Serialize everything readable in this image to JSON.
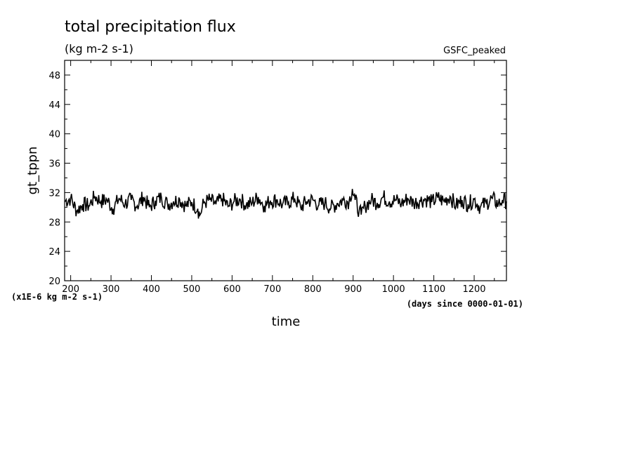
{
  "chart_data": {
    "type": "line",
    "title": "total precipitation flux",
    "units": "(kg m-2 s-1)",
    "tag": "GSFC_peaked",
    "xlabel": "time",
    "ylabel": "gt_tppn",
    "x_units_note": "(days since 0000-01-01)",
    "y_scale_note": "(x1E-6 kg m-2 s-1)",
    "xlim": [
      185,
      1280
    ],
    "ylim": [
      20,
      50
    ],
    "xticks": [
      200,
      300,
      400,
      500,
      600,
      700,
      800,
      900,
      1000,
      1100,
      1200
    ],
    "yticks": [
      20,
      24,
      28,
      32,
      36,
      40,
      44,
      48
    ],
    "grid": false,
    "series": [
      {
        "x": [
          185,
          200,
          215,
          230,
          245,
          260,
          275,
          290,
          305,
          320,
          335,
          350,
          365,
          380,
          395,
          410,
          425,
          440,
          455,
          470,
          485,
          500,
          515,
          520,
          530,
          545,
          560,
          575,
          590,
          605,
          620,
          635,
          650,
          665,
          680,
          695,
          710,
          725,
          740,
          755,
          770,
          785,
          800,
          815,
          830,
          845,
          860,
          875,
          890,
          898,
          905,
          915,
          920,
          930,
          945,
          960,
          975,
          990,
          1005,
          1020,
          1035,
          1050,
          1065,
          1080,
          1095,
          1110,
          1125,
          1140,
          1155,
          1170,
          1185,
          1200,
          1215,
          1230,
          1245,
          1260,
          1270,
          1280
        ],
        "values": [
          30.8,
          31.2,
          29.5,
          30.4,
          30.2,
          31.5,
          30.8,
          31.0,
          29.8,
          31.2,
          30.5,
          31.0,
          30.2,
          31.4,
          30.0,
          30.9,
          31.3,
          30.4,
          30.8,
          31.1,
          30.2,
          30.7,
          29.8,
          28.9,
          30.6,
          31.0,
          30.4,
          31.2,
          30.1,
          30.8,
          31.1,
          30.3,
          30.6,
          31.4,
          30.2,
          30.9,
          31.0,
          30.4,
          30.7,
          31.2,
          30.0,
          30.8,
          31.0,
          30.3,
          30.6,
          29.9,
          30.5,
          31.0,
          30.8,
          32.5,
          31.0,
          29.5,
          29.0,
          30.2,
          31.0,
          30.6,
          31.4,
          30.8,
          31.0,
          30.5,
          31.2,
          30.6,
          30.9,
          31.1,
          30.7,
          31.3,
          30.8,
          31.5,
          30.2,
          31.0,
          30.4,
          31.1,
          30.0,
          30.6,
          31.2,
          30.4,
          31.0,
          30.8
        ]
      }
    ]
  }
}
